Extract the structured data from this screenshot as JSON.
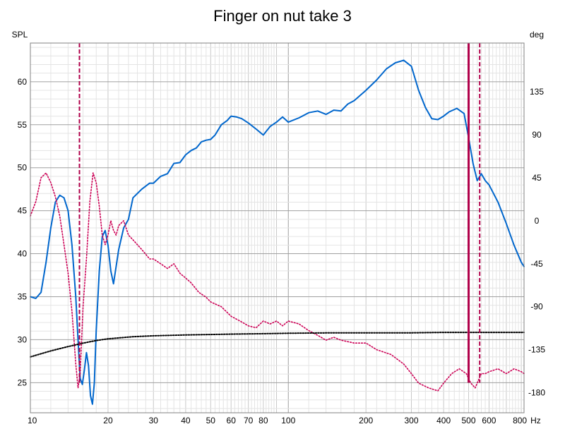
{
  "chart_data": {
    "type": "line",
    "title": "Finger on nut take 3",
    "left_axis": {
      "label": "SPL",
      "ylim": [
        21.5,
        64.5
      ],
      "ticks": [
        25,
        30,
        35,
        40,
        45,
        50,
        55,
        60
      ]
    },
    "right_axis": {
      "label": "deg",
      "ylim": [
        -201,
        186
      ],
      "ticks": [
        -180,
        -135,
        -90,
        -45,
        0,
        45,
        90,
        135
      ]
    },
    "x_axis": {
      "scale": "log",
      "unit": "Hz",
      "xlim": [
        10,
        820
      ],
      "tick_labels": [
        {
          "value": 10,
          "text": "10"
        },
        {
          "value": 20,
          "text": "20"
        },
        {
          "value": 30,
          "text": "30"
        },
        {
          "value": 40,
          "text": "40"
        },
        {
          "value": 50,
          "text": "50"
        },
        {
          "value": 60,
          "text": "60"
        },
        {
          "value": 70,
          "text": "70"
        },
        {
          "value": 80,
          "text": "80"
        },
        {
          "value": 100,
          "text": "100"
        },
        {
          "value": 200,
          "text": "200"
        },
        {
          "value": 300,
          "text": "300"
        },
        {
          "value": 400,
          "text": "400"
        },
        {
          "value": 500,
          "text": "500"
        },
        {
          "value": 600,
          "text": "600"
        },
        {
          "value": 800,
          "text": "800"
        }
      ],
      "unit_label": "Hz"
    },
    "grid": true,
    "colors": {
      "spl": "#0066cc",
      "phase": "#cc0055",
      "floor": "#000000",
      "marker": "#b0004a",
      "grid": "#c8c8c8",
      "grid_major": "#a0a0a0"
    },
    "series": [
      {
        "key": "spl",
        "axis": "left",
        "style": "solid",
        "x": [
          10,
          10.5,
          11,
          11.5,
          12,
          12.5,
          13,
          13.5,
          14,
          14.5,
          15,
          15.3,
          15.6,
          15.9,
          16.2,
          16.5,
          16.8,
          17.1,
          17.4,
          17.7,
          18,
          18.5,
          19,
          19.5,
          20,
          20.5,
          21,
          22,
          23,
          24,
          25,
          27,
          29,
          30,
          32,
          34,
          36,
          38,
          40,
          42,
          44,
          46,
          48,
          50,
          52,
          55,
          58,
          60,
          63,
          66,
          70,
          75,
          80,
          85,
          90,
          95,
          100,
          110,
          120,
          130,
          140,
          150,
          160,
          170,
          180,
          200,
          220,
          240,
          260,
          280,
          300,
          320,
          340,
          360,
          380,
          400,
          420,
          450,
          480,
          500,
          520,
          540,
          560,
          580,
          600,
          650,
          700,
          750,
          800,
          820
        ],
        "y": [
          35,
          34.8,
          35.5,
          39,
          43,
          46,
          46.8,
          46.5,
          45,
          41,
          35,
          30,
          25.5,
          24.8,
          26.5,
          28.5,
          27,
          23.5,
          22.5,
          25,
          31,
          38,
          42,
          42.7,
          41,
          38,
          36.5,
          40.5,
          43,
          44,
          46.5,
          47.5,
          48.2,
          48.2,
          49,
          49.3,
          50.5,
          50.6,
          51.5,
          52,
          52.3,
          53,
          53.2,
          53.3,
          53.8,
          55,
          55.5,
          56,
          55.9,
          55.7,
          55.2,
          54.5,
          53.8,
          54.8,
          55.3,
          55.9,
          55.3,
          55.8,
          56.4,
          56.6,
          56.2,
          56.7,
          56.6,
          57.4,
          57.8,
          59,
          60.2,
          61.5,
          62.2,
          62.5,
          61.8,
          59,
          57,
          55.7,
          55.6,
          56,
          56.5,
          56.9,
          56.3,
          53.5,
          50.5,
          48.5,
          49.3,
          48.5,
          48,
          46,
          43.5,
          41,
          39,
          38.5
        ]
      },
      {
        "key": "phase",
        "axis": "right",
        "style": "dotted",
        "x": [
          10,
          10.5,
          11,
          11.5,
          12,
          12.5,
          13,
          13.5,
          14,
          14.5,
          15,
          15.3,
          15.6,
          16,
          16.5,
          17,
          17.5,
          18,
          18.5,
          19,
          19.5,
          20,
          20.5,
          21,
          21.5,
          22,
          23,
          24,
          25,
          27,
          29,
          30,
          32,
          34,
          36,
          38,
          40,
          42,
          45,
          48,
          50,
          55,
          60,
          65,
          70,
          75,
          80,
          85,
          90,
          95,
          100,
          110,
          120,
          130,
          140,
          150,
          160,
          180,
          200,
          220,
          250,
          280,
          300,
          320,
          350,
          380,
          400,
          430,
          460,
          490,
          500,
          510,
          530,
          550,
          560,
          580,
          600,
          650,
          700,
          750,
          800,
          820
        ],
        "y": [
          5,
          20,
          45,
          50,
          40,
          25,
          5,
          -25,
          -55,
          -95,
          -150,
          -175,
          -160,
          -90,
          -40,
          20,
          50,
          40,
          15,
          -15,
          -25,
          -15,
          0,
          -10,
          -15,
          -5,
          0,
          -15,
          -20,
          -30,
          -40,
          -40,
          -45,
          -50,
          -45,
          -55,
          -60,
          -65,
          -75,
          -80,
          -85,
          -90,
          -100,
          -105,
          -110,
          -112,
          -105,
          -108,
          -105,
          -110,
          -105,
          -108,
          -115,
          -120,
          -125,
          -122,
          -125,
          -128,
          -128,
          -135,
          -140,
          -150,
          -160,
          -170,
          -175,
          -178,
          -170,
          -160,
          -155,
          -160,
          -165,
          -170,
          -175,
          -165,
          -160,
          -160,
          -158,
          -155,
          -160,
          -155,
          -158,
          -160
        ]
      },
      {
        "key": "floor",
        "axis": "left",
        "style": "dotted",
        "x": [
          10,
          12,
          14,
          16,
          18,
          20,
          25,
          30,
          40,
          50,
          60,
          80,
          100,
          150,
          200,
          300,
          400,
          500,
          600,
          700,
          820
        ],
        "y": [
          28,
          28.7,
          29.2,
          29.6,
          29.9,
          30.1,
          30.35,
          30.45,
          30.55,
          30.6,
          30.65,
          30.7,
          30.75,
          30.8,
          30.8,
          30.8,
          30.85,
          30.85,
          30.85,
          30.85,
          30.85
        ]
      }
    ],
    "markers": [
      {
        "x": 15.5,
        "y1": 64.5,
        "y2": 25,
        "style": "dashed"
      },
      {
        "x": 500,
        "y1": 64.5,
        "y2": 25,
        "style": "solid"
      },
      {
        "x": 552,
        "y1": 64.5,
        "y2": 25,
        "style": "dashed"
      }
    ]
  }
}
